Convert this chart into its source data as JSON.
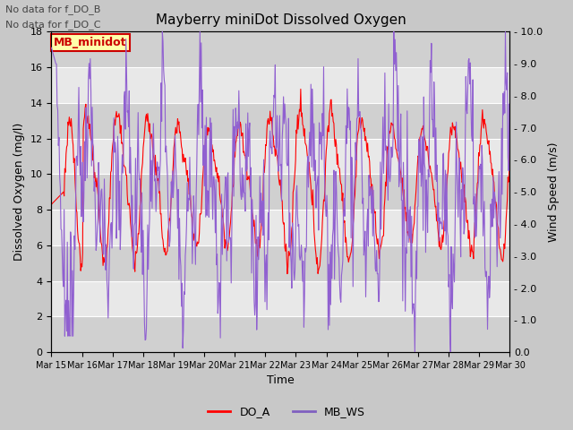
{
  "title": "Mayberry miniDot Dissolved Oxygen",
  "xlabel": "Time",
  "ylabel_left": "Dissolved Oxygen (mg/l)",
  "ylabel_right": "Wind Speed (m/s)",
  "annotations": [
    "No data for f_DO_B",
    "No data for f_DO_C"
  ],
  "legend_label_box": "MB_minidot",
  "legend_entries": [
    "DO_A",
    "MB_WS"
  ],
  "legend_colors": [
    "#ff0000",
    "#8060c0"
  ],
  "ylim_left": [
    0,
    18
  ],
  "ylim_right": [
    0.0,
    10.0
  ],
  "yticks_left": [
    0,
    2,
    4,
    6,
    8,
    10,
    12,
    14,
    16,
    18
  ],
  "yticks_right": [
    0.0,
    1.0,
    2.0,
    3.0,
    4.0,
    5.0,
    6.0,
    7.0,
    8.0,
    9.0,
    10.0
  ],
  "xtick_labels": [
    "Mar 15",
    "Mar 16",
    "Mar 17",
    "Mar 18",
    "Mar 19",
    "Mar 20",
    "Mar 21",
    "Mar 22",
    "Mar 23",
    "Mar 24",
    "Mar 25",
    "Mar 26",
    "Mar 27",
    "Mar 28",
    "Mar 29",
    "Mar 30"
  ],
  "do_color": "#ff0000",
  "ws_color": "#9060d0",
  "fig_bg": "#c8c8c8",
  "plot_bg_light": "#e8e8e8",
  "plot_bg_dark": "#d0d0d0",
  "grid_color": "#ffffff",
  "band_color_light": "#e8e8e8",
  "band_color_dark": "#d8d8d8"
}
